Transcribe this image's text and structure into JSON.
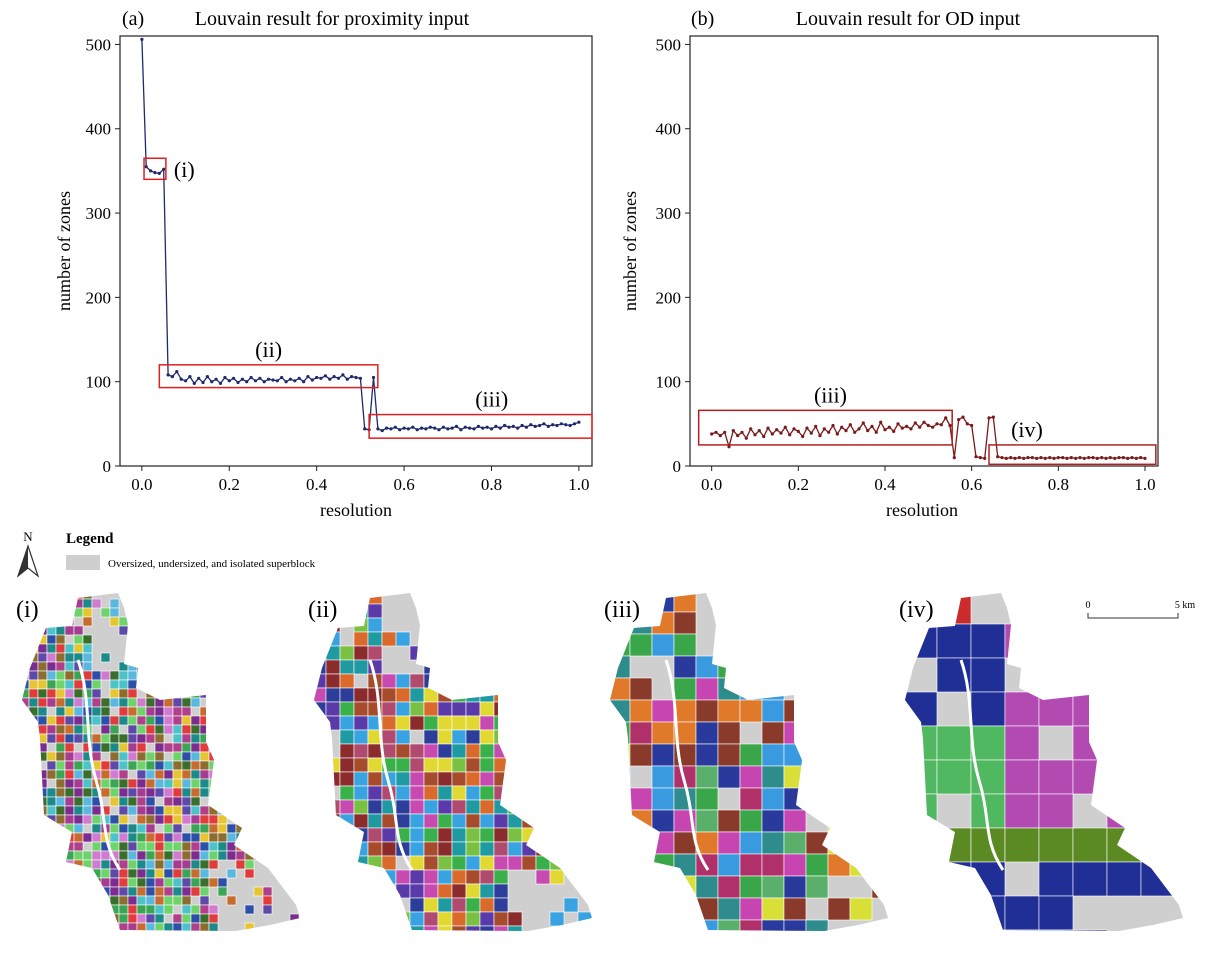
{
  "charts": [
    {
      "panel_label": "(a)",
      "title": "Louvain result for proximity input",
      "xlabel": "resolution",
      "ylabel": "number of zones",
      "line_color": "#1f2a6b",
      "box_color": "#e02020",
      "box_labels": [
        "(i)",
        "(ii)",
        "(iii)"
      ]
    },
    {
      "panel_label": "(b)",
      "title": "Louvain result for OD input",
      "xlabel": "resolution",
      "ylabel": "number of zones",
      "line_color": "#7a1a1a",
      "box_color": "#b02020",
      "box_labels": [
        "(iii)",
        "(iv)"
      ]
    }
  ],
  "chart_data": [
    {
      "type": "line",
      "title": "Louvain result for proximity input",
      "xlabel": "resolution",
      "ylabel": "number of zones",
      "xlim": [
        -0.05,
        1.03
      ],
      "ylim": [
        0,
        510
      ],
      "xticks": [
        "0.0",
        "0.2",
        "0.4",
        "0.6",
        "0.8",
        "1.0"
      ],
      "yticks": [
        "0",
        "100",
        "200",
        "300",
        "400",
        "500"
      ],
      "x": [
        0.0,
        0.01,
        0.02,
        0.03,
        0.04,
        0.05,
        0.06,
        0.07,
        0.08,
        0.09,
        0.1,
        0.11,
        0.12,
        0.13,
        0.14,
        0.15,
        0.16,
        0.17,
        0.18,
        0.19,
        0.2,
        0.21,
        0.22,
        0.23,
        0.24,
        0.25,
        0.26,
        0.27,
        0.28,
        0.29,
        0.3,
        0.31,
        0.32,
        0.33,
        0.34,
        0.35,
        0.36,
        0.37,
        0.38,
        0.39,
        0.4,
        0.41,
        0.42,
        0.43,
        0.44,
        0.45,
        0.46,
        0.47,
        0.48,
        0.49,
        0.5,
        0.51,
        0.52,
        0.53,
        0.54,
        0.55,
        0.56,
        0.57,
        0.58,
        0.59,
        0.6,
        0.61,
        0.62,
        0.63,
        0.64,
        0.65,
        0.66,
        0.67,
        0.68,
        0.69,
        0.7,
        0.71,
        0.72,
        0.73,
        0.74,
        0.75,
        0.76,
        0.77,
        0.78,
        0.79,
        0.8,
        0.81,
        0.82,
        0.83,
        0.84,
        0.85,
        0.86,
        0.87,
        0.88,
        0.89,
        0.9,
        0.91,
        0.92,
        0.93,
        0.94,
        0.95,
        0.96,
        0.97,
        0.98,
        0.99,
        1.0
      ],
      "y": [
        506,
        355,
        350,
        348,
        347,
        352,
        108,
        106,
        112,
        103,
        101,
        106,
        98,
        104,
        99,
        106,
        100,
        103,
        98,
        105,
        101,
        104,
        99,
        103,
        100,
        105,
        101,
        104,
        100,
        103,
        102,
        101,
        105,
        100,
        103,
        101,
        104,
        100,
        106,
        102,
        105,
        104,
        107,
        103,
        106,
        104,
        108,
        103,
        106,
        105,
        104,
        44,
        43,
        105,
        44,
        42,
        45,
        44,
        46,
        43,
        45,
        44,
        46,
        43,
        45,
        44,
        46,
        45,
        43,
        46,
        44,
        45,
        47,
        43,
        46,
        45,
        44,
        47,
        45,
        46,
        44,
        47,
        45,
        48,
        46,
        47,
        45,
        48,
        46,
        49,
        47,
        48,
        50,
        47,
        49,
        48,
        50,
        49,
        48,
        50,
        52
      ],
      "boxes": [
        {
          "label": "(i)",
          "x": [
            0.005,
            0.055
          ],
          "y": [
            340,
            365
          ]
        },
        {
          "label": "(ii)",
          "x": [
            0.04,
            0.54
          ],
          "y": [
            93,
            120
          ]
        },
        {
          "label": "(iii)",
          "x": [
            0.52,
            1.03
          ],
          "y": [
            33,
            61
          ]
        }
      ]
    },
    {
      "type": "line",
      "title": "Louvain result for OD input",
      "xlabel": "resolution",
      "ylabel": "number of zones",
      "xlim": [
        -0.05,
        1.03
      ],
      "ylim": [
        0,
        510
      ],
      "xticks": [
        "0.0",
        "0.2",
        "0.4",
        "0.6",
        "0.8",
        "1.0"
      ],
      "yticks": [
        "0",
        "100",
        "200",
        "300",
        "400",
        "500"
      ],
      "x": [
        0.0,
        0.01,
        0.02,
        0.03,
        0.04,
        0.05,
        0.06,
        0.07,
        0.08,
        0.09,
        0.1,
        0.11,
        0.12,
        0.13,
        0.14,
        0.15,
        0.16,
        0.17,
        0.18,
        0.19,
        0.2,
        0.21,
        0.22,
        0.23,
        0.24,
        0.25,
        0.26,
        0.27,
        0.28,
        0.29,
        0.3,
        0.31,
        0.32,
        0.33,
        0.34,
        0.35,
        0.36,
        0.37,
        0.38,
        0.39,
        0.4,
        0.41,
        0.42,
        0.43,
        0.44,
        0.45,
        0.46,
        0.47,
        0.48,
        0.49,
        0.5,
        0.51,
        0.52,
        0.53,
        0.54,
        0.55,
        0.56,
        0.57,
        0.58,
        0.59,
        0.6,
        0.61,
        0.62,
        0.63,
        0.64,
        0.65,
        0.66,
        0.67,
        0.68,
        0.69,
        0.7,
        0.71,
        0.72,
        0.73,
        0.74,
        0.75,
        0.76,
        0.77,
        0.78,
        0.79,
        0.8,
        0.81,
        0.82,
        0.83,
        0.84,
        0.85,
        0.86,
        0.87,
        0.88,
        0.89,
        0.9,
        0.91,
        0.92,
        0.93,
        0.94,
        0.95,
        0.96,
        0.97,
        0.98,
        0.99,
        1.0
      ],
      "y": [
        38,
        40,
        36,
        40,
        23,
        42,
        36,
        40,
        33,
        44,
        37,
        42,
        35,
        45,
        38,
        43,
        39,
        46,
        37,
        44,
        41,
        35,
        45,
        39,
        47,
        36,
        44,
        40,
        48,
        38,
        46,
        42,
        49,
        40,
        44,
        51,
        42,
        47,
        40,
        52,
        43,
        46,
        41,
        50,
        45,
        47,
        44,
        51,
        46,
        52,
        48,
        46,
        50,
        49,
        57,
        48,
        10,
        55,
        58,
        50,
        48,
        11,
        10,
        9,
        57,
        58,
        11,
        10,
        9,
        10,
        9,
        10,
        9,
        10,
        10,
        9,
        10,
        9,
        10,
        9,
        10,
        10,
        9,
        10,
        9,
        10,
        9,
        10,
        10,
        9,
        10,
        9,
        10,
        9,
        10,
        10,
        9,
        10,
        9,
        10,
        9
      ],
      "boxes": [
        {
          "label": "(iii)",
          "x": [
            -0.03,
            0.555
          ],
          "y": [
            25,
            66
          ]
        },
        {
          "label": "(iv)",
          "x": [
            0.64,
            1.025
          ],
          "y": [
            2,
            25
          ]
        }
      ]
    }
  ],
  "legend": {
    "north_label": "N",
    "title": "Legend",
    "item_label": "Oversized, undersized, and isolated superblock",
    "item_color": "#cfcfcf"
  },
  "maps": [
    {
      "label": "(i)",
      "palette": [
        "#7b2c8f",
        "#3aa655",
        "#e03c3c",
        "#2c4fa8",
        "#8c6d2f",
        "#4cc3c8",
        "#a63c8f",
        "#6fd36b",
        "#c76b2e",
        "#5d4aa8",
        "#e5c531",
        "#1d8a8a",
        "#b0408a",
        "#5ab8e0",
        "#3a6e2c",
        "#d07ad0"
      ]
    },
    {
      "label": "(ii)",
      "palette": [
        "#3ab04a",
        "#2c3e9a",
        "#a64c2c",
        "#c74ab0",
        "#1f9aa0",
        "#7ac143",
        "#8c2b2b",
        "#38a3e0",
        "#d96a2c",
        "#5a3aa8",
        "#e2d832",
        "#b04a6e"
      ]
    },
    {
      "label": "(iii)",
      "palette": [
        "#2a3a9c",
        "#c745b0",
        "#3aa64a",
        "#2f8c8c",
        "#d8e038",
        "#8a3a2a",
        "#5ab06a",
        "#b0306a",
        "#3a9ae0",
        "#e07a2a"
      ]
    },
    {
      "label": "(iv)",
      "palette": [
        "#1f2f96",
        "#b24ab2",
        "#4fb861",
        "#5b8a22",
        "#cc2b2b",
        "#2b9a9a"
      ]
    }
  ],
  "scalebar": {
    "start_label": "0",
    "end_label": "5 km"
  }
}
